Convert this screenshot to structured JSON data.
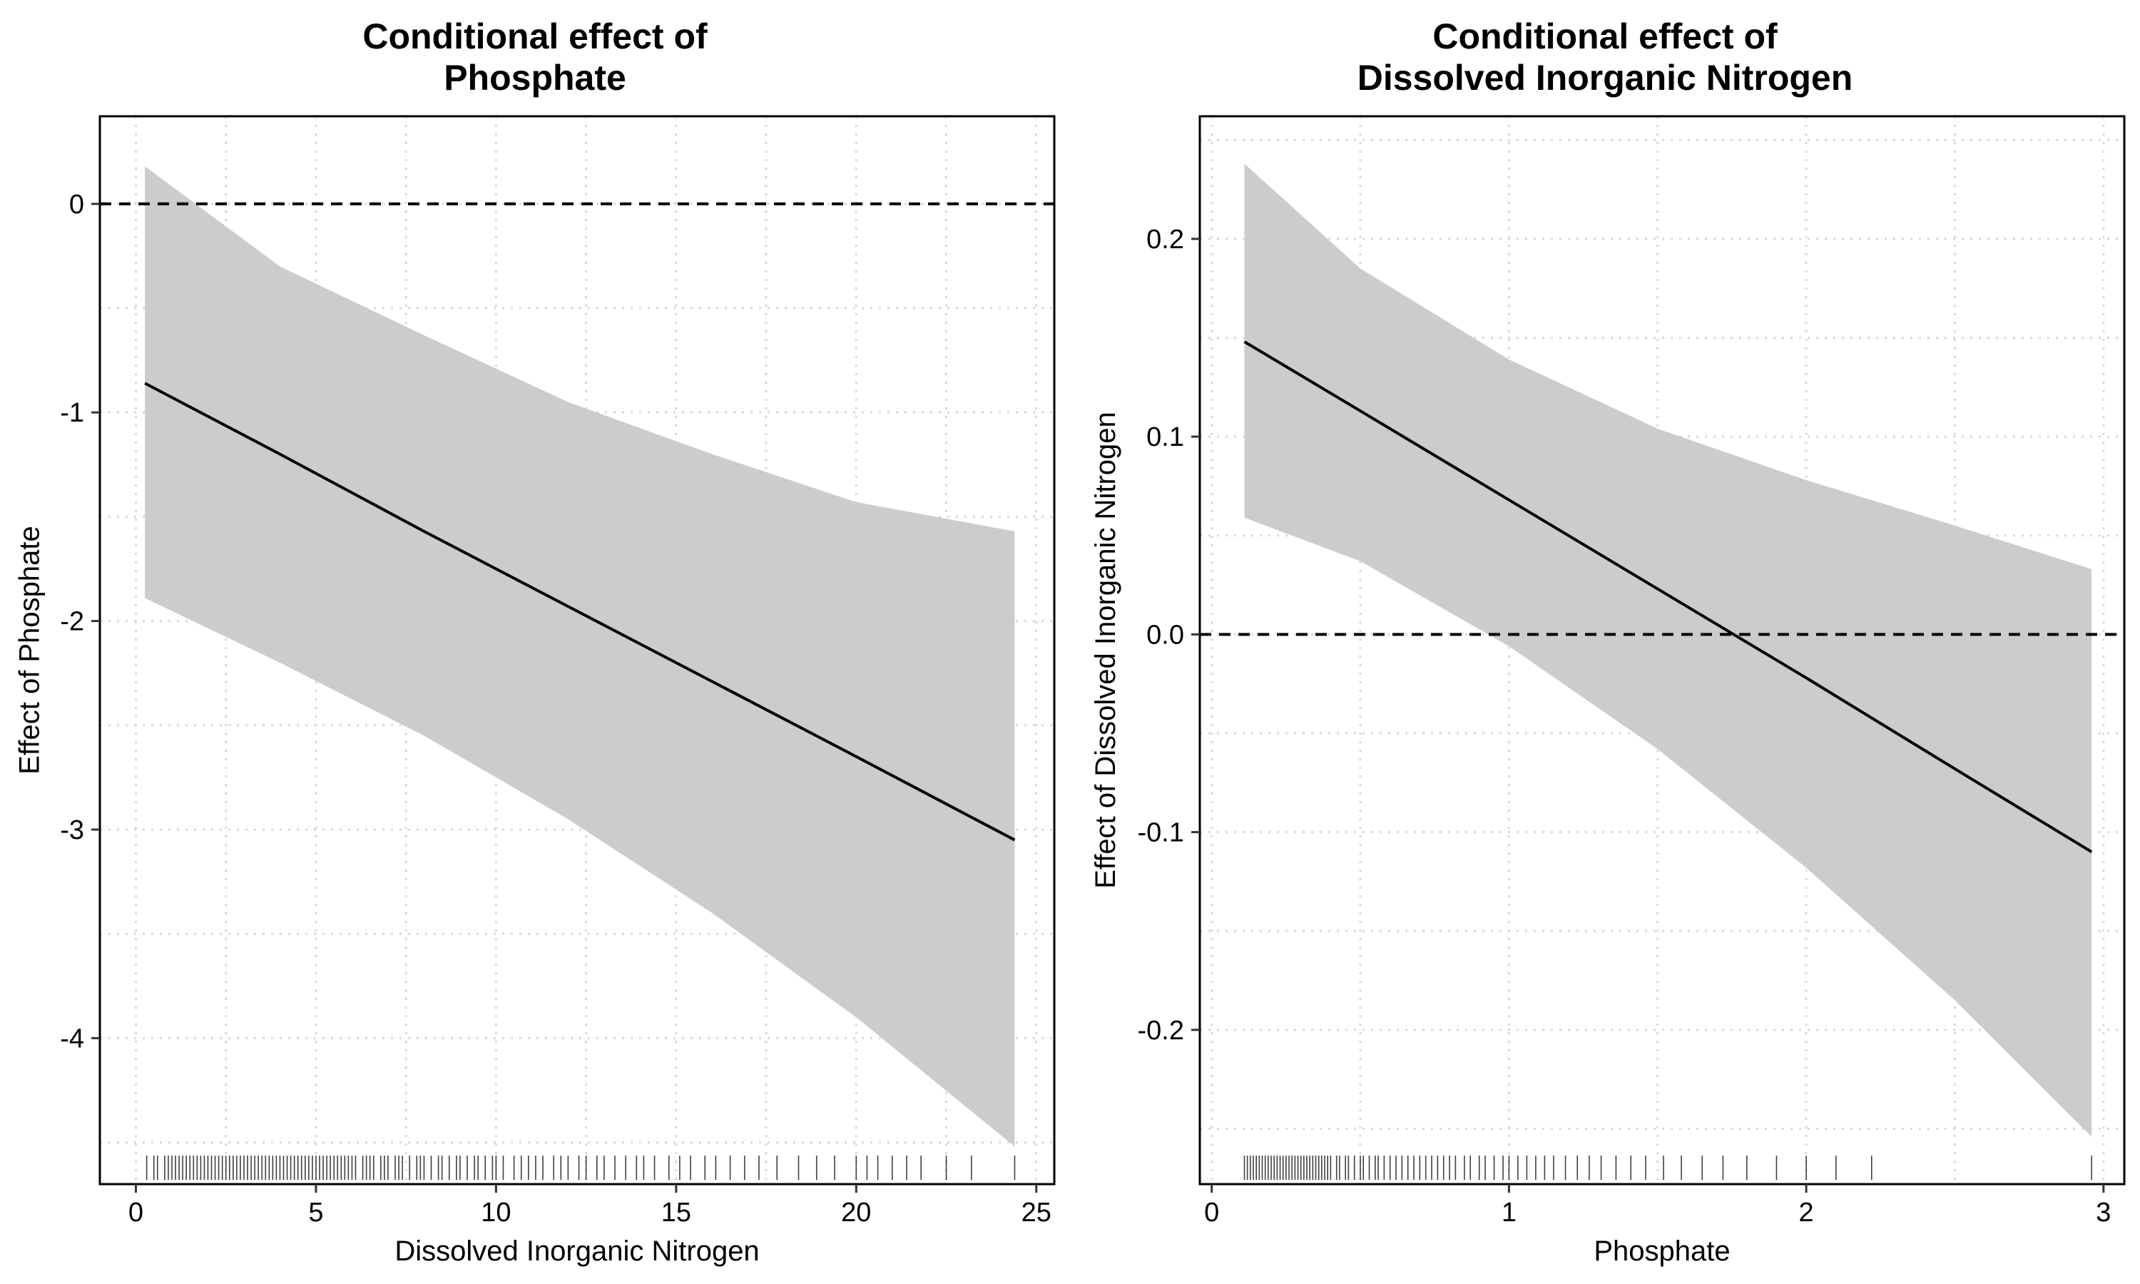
{
  "chart_data": [
    {
      "type": "line",
      "title_lines": [
        "Conditional effect of",
        "Phosphate"
      ],
      "xlabel": "Dissolved Inorganic Nitrogen",
      "ylabel": "Effect of Phosphate",
      "xlim": [
        -1,
        25.5
      ],
      "ylim": [
        -4.7,
        0.42
      ],
      "xticks": [
        0,
        5,
        10,
        15,
        20,
        25
      ],
      "yticks": [
        0,
        -1,
        -2,
        -3,
        -4
      ],
      "ytick_labels": [
        "0",
        "-1",
        "-2",
        "-3",
        "-4"
      ],
      "reference_line": 0,
      "grid": true,
      "series": [
        {
          "x": [
            0.25,
            4,
            8,
            12,
            16,
            20,
            24.4
          ],
          "y": [
            -0.86,
            -1.2,
            -1.57,
            -1.93,
            -2.29,
            -2.65,
            -3.05
          ],
          "lower": [
            -1.89,
            -2.2,
            -2.55,
            -2.95,
            -3.4,
            -3.9,
            -4.52
          ],
          "upper": [
            0.18,
            -0.3,
            -0.63,
            -0.95,
            -1.2,
            -1.43,
            -1.57
          ]
        }
      ],
      "rug": [
        0.3,
        0.5,
        0.6,
        0.8,
        0.9,
        1.0,
        1.1,
        1.2,
        1.3,
        1.4,
        1.5,
        1.6,
        1.7,
        1.8,
        1.9,
        2.0,
        2.1,
        2.2,
        2.3,
        2.4,
        2.5,
        2.6,
        2.7,
        2.8,
        2.9,
        3.0,
        3.1,
        3.2,
        3.3,
        3.4,
        3.5,
        3.6,
        3.7,
        3.8,
        3.9,
        4.0,
        4.1,
        4.2,
        4.3,
        4.4,
        4.5,
        4.6,
        4.7,
        4.8,
        4.9,
        5.0,
        5.1,
        5.2,
        5.3,
        5.4,
        5.5,
        5.6,
        5.7,
        5.8,
        5.9,
        6.0,
        6.1,
        6.3,
        6.4,
        6.5,
        6.6,
        6.8,
        6.9,
        7.0,
        7.2,
        7.3,
        7.4,
        7.6,
        7.8,
        7.9,
        8.0,
        8.2,
        8.4,
        8.5,
        8.7,
        8.9,
        9.0,
        9.2,
        9.4,
        9.5,
        9.7,
        9.9,
        10.0,
        10.2,
        10.5,
        10.7,
        10.9,
        11.1,
        11.3,
        11.6,
        11.8,
        12.0,
        12.3,
        12.5,
        12.8,
        13.0,
        13.3,
        13.6,
        13.9,
        14.1,
        14.4,
        14.8,
        15.1,
        15.4,
        15.8,
        16.1,
        16.5,
        16.9,
        17.3,
        17.8,
        18.4,
        18.9,
        19.4,
        20.0,
        20.3,
        20.6,
        21.0,
        21.4,
        21.8,
        22.5,
        23.2,
        24.4
      ]
    },
    {
      "type": "line",
      "title_lines": [
        "Conditional effect of",
        "Dissolved Inorganic Nitrogen"
      ],
      "xlabel": "Phosphate",
      "ylabel": "Effect of Dissolved Inorganic Nitrogen",
      "xlim": [
        -0.04,
        3.07
      ],
      "ylim": [
        -0.278,
        0.262
      ],
      "xticks": [
        0,
        1,
        2,
        3
      ],
      "yticks": [
        0.2,
        0.1,
        0.0,
        -0.1,
        -0.2
      ],
      "ytick_labels": [
        "0.2",
        "0.1",
        "0.0",
        "-0.1",
        "-0.2"
      ],
      "reference_line": 0,
      "grid": true,
      "series": [
        {
          "x": [
            0.11,
            0.5,
            1.0,
            1.5,
            2.0,
            2.5,
            2.96
          ],
          "y": [
            0.148,
            0.113,
            0.068,
            0.023,
            -0.022,
            -0.068,
            -0.11
          ],
          "lower": [
            0.059,
            0.037,
            -0.006,
            -0.058,
            -0.118,
            -0.185,
            -0.254
          ],
          "upper": [
            0.238,
            0.185,
            0.139,
            0.104,
            0.078,
            0.055,
            0.033
          ]
        }
      ],
      "rug": [
        0.11,
        0.12,
        0.13,
        0.14,
        0.15,
        0.16,
        0.17,
        0.18,
        0.19,
        0.2,
        0.21,
        0.22,
        0.23,
        0.24,
        0.25,
        0.26,
        0.27,
        0.28,
        0.29,
        0.3,
        0.31,
        0.32,
        0.33,
        0.34,
        0.35,
        0.36,
        0.37,
        0.38,
        0.39,
        0.4,
        0.42,
        0.43,
        0.45,
        0.46,
        0.48,
        0.5,
        0.51,
        0.53,
        0.55,
        0.56,
        0.58,
        0.6,
        0.62,
        0.64,
        0.66,
        0.68,
        0.7,
        0.72,
        0.74,
        0.76,
        0.78,
        0.8,
        0.82,
        0.85,
        0.87,
        0.9,
        0.92,
        0.95,
        0.98,
        1.0,
        1.03,
        1.06,
        1.09,
        1.12,
        1.15,
        1.19,
        1.23,
        1.27,
        1.31,
        1.36,
        1.41,
        1.46,
        1.52,
        1.58,
        1.65,
        1.72,
        1.8,
        1.9,
        2.0,
        2.1,
        2.22,
        2.96
      ]
    }
  ]
}
